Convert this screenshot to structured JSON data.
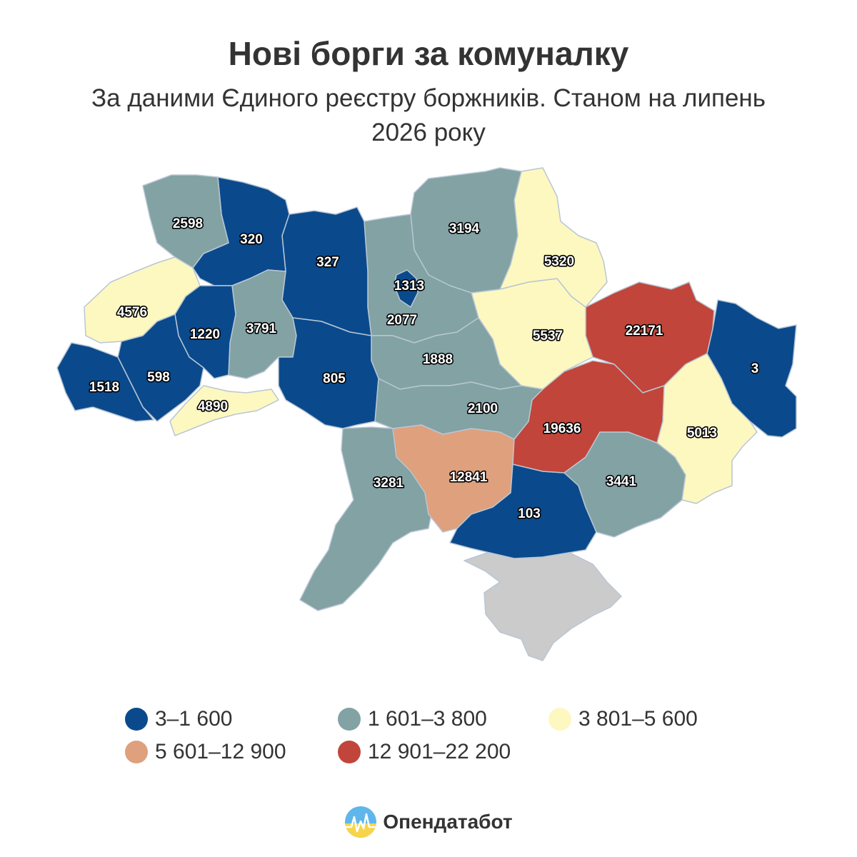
{
  "title": "Нові борги за комуналку",
  "subtitle": "За даними Єдиного реєстру боржників. Станом на липень 2026 року",
  "colors": {
    "bin1": "#0a4a8c",
    "bin2": "#82a2a4",
    "bin3": "#fdf8c0",
    "bin4": "#dfa07d",
    "bin5": "#c1453a",
    "no_data": "#cbcbcb",
    "border": "#b9c6d4"
  },
  "legend": [
    {
      "label": "3–1 600",
      "color": "#0a4a8c"
    },
    {
      "label": "1 601–3 800",
      "color": "#82a2a4"
    },
    {
      "label": "3 801–5 600",
      "color": "#fdf8c0"
    },
    {
      "label": "5 601–12 900",
      "color": "#dfa07d"
    },
    {
      "label": "12 901–22 200",
      "color": "#c1453a"
    }
  ],
  "values": {
    "volyn": "2598",
    "rivne": "320",
    "zhytomyr": "327",
    "kyiv_oblast": "2077",
    "kyiv_city": "1313",
    "chernihiv": "3194",
    "sumy": "5320",
    "kharkiv": "22171",
    "luhansk": "3",
    "donetsk": "5013",
    "zaporizhzhia": "3441",
    "dnipro": "19636",
    "poltava": "5537",
    "cherkasy": "1888",
    "kirovohrad": "2100",
    "vinnytsia": "805",
    "khmelnytskyi": "3791",
    "ternopil": "1220",
    "lviv": "4576",
    "ivano_frankivsk": "598",
    "zakarpattia": "1518",
    "chernivtsi": "4890",
    "odesa": "3281",
    "mykolaiv": "12841",
    "kherson": "103"
  },
  "brand": {
    "name": "Опендатабот",
    "icon": "opendatabot-logo-icon"
  }
}
